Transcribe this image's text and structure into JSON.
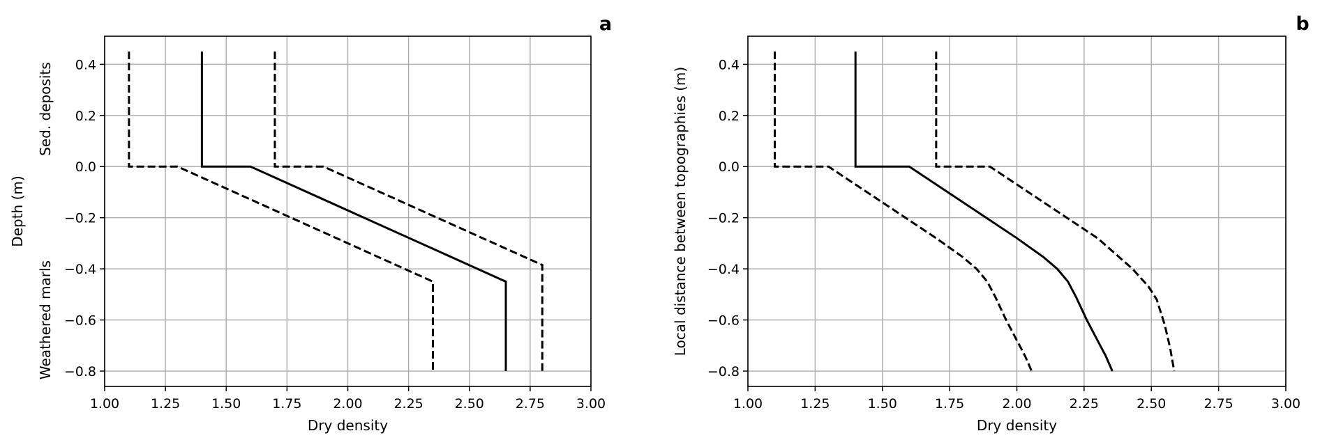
{
  "chart_data": [
    {
      "type": "line",
      "panel_label": "a",
      "xlabel": "Dry density",
      "ylabel": "Depth (m)",
      "ylabel_annotations": [
        "Sed. deposits",
        "Weathered marls"
      ],
      "xlim": [
        1.0,
        3.0
      ],
      "ylim": [
        -0.86,
        0.51
      ],
      "xticks": [
        1.0,
        1.25,
        1.5,
        1.75,
        2.0,
        2.25,
        2.5,
        2.75,
        3.0
      ],
      "xtick_labels": [
        "1.00",
        "1.25",
        "1.50",
        "1.75",
        "2.00",
        "2.25",
        "2.50",
        "2.75",
        "3.00"
      ],
      "yticks": [
        0.4,
        0.2,
        0.0,
        -0.2,
        -0.4,
        -0.6,
        -0.8
      ],
      "ytick_labels": [
        "0.4",
        "0.2",
        "0.0",
        "−0.2",
        "−0.4",
        "−0.6",
        "−0.8"
      ],
      "grid": true,
      "series": [
        {
          "style": "solid",
          "color": "#000000",
          "points": [
            [
              1.4,
              0.45
            ],
            [
              1.4,
              0.0
            ],
            [
              1.6,
              0.0
            ],
            [
              2.65,
              -0.45
            ],
            [
              2.65,
              -0.8
            ]
          ]
        },
        {
          "style": "dashed",
          "color": "#000000",
          "points": [
            [
              1.1,
              0.45
            ],
            [
              1.1,
              0.0
            ],
            [
              1.3,
              0.0
            ],
            [
              2.35,
              -0.45
            ],
            [
              2.35,
              -0.8
            ]
          ]
        },
        {
          "style": "dashed",
          "color": "#000000",
          "points": [
            [
              1.7,
              0.45
            ],
            [
              1.7,
              0.0
            ],
            [
              1.9,
              0.0
            ],
            [
              2.8,
              -0.385
            ],
            [
              2.8,
              -0.8
            ]
          ]
        }
      ]
    },
    {
      "type": "line",
      "panel_label": "b",
      "xlabel": "Dry density",
      "ylabel": "Local distance between topographies (m)",
      "xlim": [
        1.0,
        3.0
      ],
      "ylim": [
        -0.86,
        0.51
      ],
      "xticks": [
        1.0,
        1.25,
        1.5,
        1.75,
        2.0,
        2.25,
        2.5,
        2.75,
        3.0
      ],
      "xtick_labels": [
        "1.00",
        "1.25",
        "1.50",
        "1.75",
        "2.00",
        "2.25",
        "2.50",
        "2.75",
        "3.00"
      ],
      "yticks": [
        0.4,
        0.2,
        0.0,
        -0.2,
        -0.4,
        -0.6,
        -0.8
      ],
      "ytick_labels": [
        "0.4",
        "0.2",
        "0.0",
        "−0.2",
        "−0.4",
        "−0.6",
        "−0.8"
      ],
      "grid": true,
      "series": [
        {
          "style": "solid",
          "color": "#000000",
          "points": [
            [
              1.4,
              0.45
            ],
            [
              1.4,
              0.0
            ],
            [
              1.6,
              0.0
            ],
            [
              1.8,
              -0.14
            ],
            [
              2.0,
              -0.28
            ],
            [
              2.1,
              -0.355
            ],
            [
              2.15,
              -0.4
            ],
            [
              2.19,
              -0.45
            ],
            [
              2.22,
              -0.51
            ],
            [
              2.26,
              -0.6
            ],
            [
              2.3,
              -0.68
            ],
            [
              2.33,
              -0.74
            ],
            [
              2.355,
              -0.8
            ]
          ]
        },
        {
          "style": "dashed",
          "color": "#000000",
          "points": [
            [
              1.1,
              0.45
            ],
            [
              1.1,
              0.0
            ],
            [
              1.3,
              0.0
            ],
            [
              1.5,
              -0.14
            ],
            [
              1.7,
              -0.28
            ],
            [
              1.8,
              -0.355
            ],
            [
              1.85,
              -0.4
            ],
            [
              1.89,
              -0.45
            ],
            [
              1.92,
              -0.51
            ],
            [
              1.96,
              -0.6
            ],
            [
              2.0,
              -0.68
            ],
            [
              2.03,
              -0.74
            ],
            [
              2.055,
              -0.8
            ]
          ]
        },
        {
          "style": "dashed",
          "color": "#000000",
          "points": [
            [
              1.7,
              0.45
            ],
            [
              1.7,
              0.0
            ],
            [
              1.9,
              0.0
            ],
            [
              2.1,
              -0.14
            ],
            [
              2.3,
              -0.28
            ],
            [
              2.43,
              -0.4
            ],
            [
              2.49,
              -0.47
            ],
            [
              2.52,
              -0.52
            ],
            [
              2.55,
              -0.62
            ],
            [
              2.57,
              -0.71
            ],
            [
              2.585,
              -0.8
            ]
          ]
        }
      ]
    }
  ]
}
